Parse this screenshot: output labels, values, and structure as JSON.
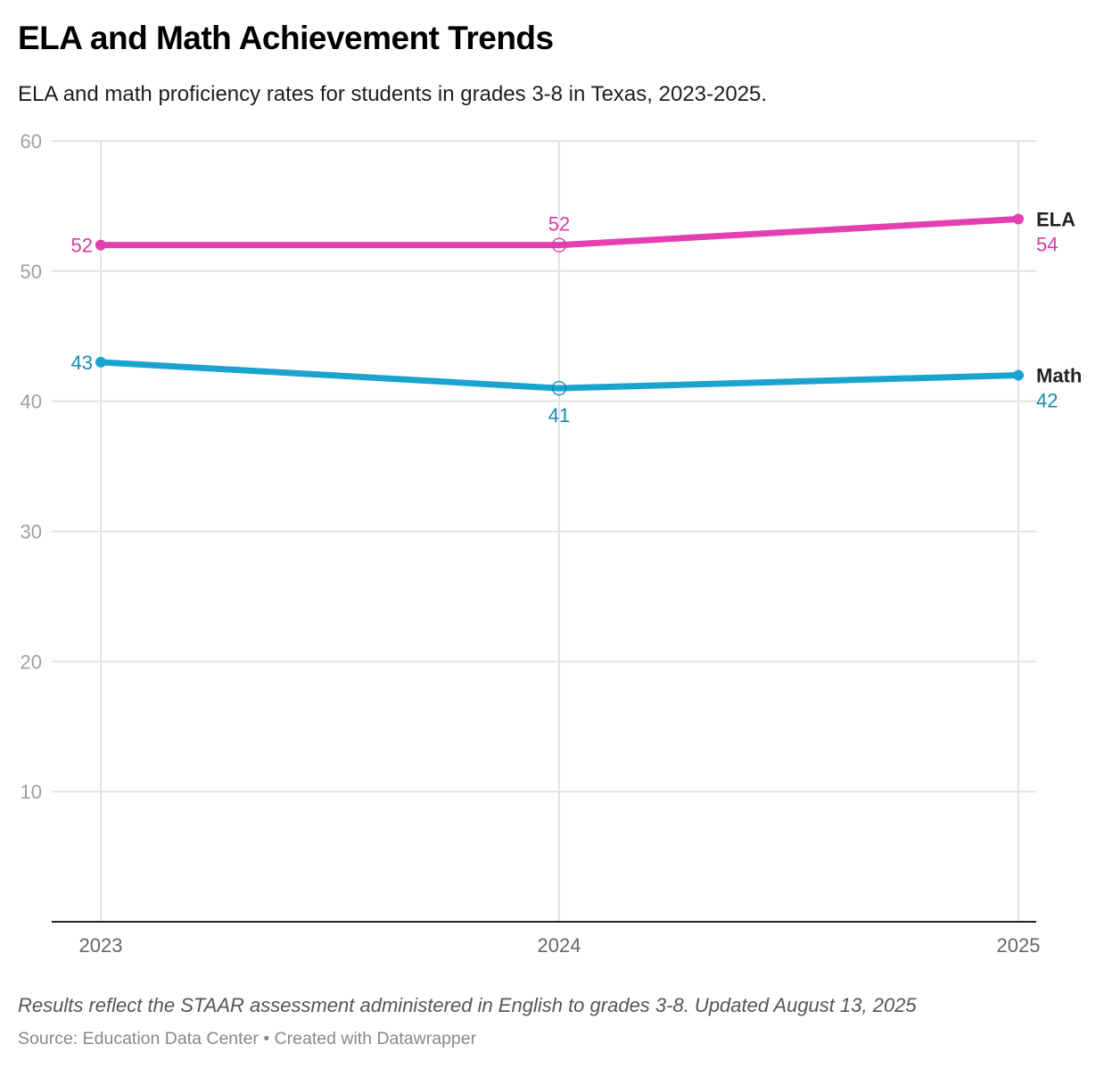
{
  "header": {
    "title": "ELA and Math Achievement Trends",
    "subtitle": "ELA and math proficiency rates for students in grades 3-8 in Texas, 2023-2025."
  },
  "footer": {
    "notes": "Results reflect the STAAR assessment administered in English to grades 3-8. Updated August 13, 2025",
    "source": "Source: Education Data Center • Created with Datawrapper"
  },
  "chart_data": {
    "type": "line",
    "title": "ELA and Math Achievement Trends",
    "x": [
      "2023",
      "2024",
      "2025"
    ],
    "ylim": [
      0,
      60
    ],
    "yticks": [
      "10",
      "20",
      "30",
      "40",
      "50",
      "60"
    ],
    "grid": true,
    "legend": "inline-right",
    "series": [
      {
        "name": "ELA",
        "values": [
          52,
          52,
          54
        ],
        "color": "#e43fb1",
        "label_color": "#d63aa4"
      },
      {
        "name": "Math",
        "values": [
          43,
          41,
          42
        ],
        "color": "#1ba3cf",
        "label_color": "#1689b0"
      }
    ]
  }
}
